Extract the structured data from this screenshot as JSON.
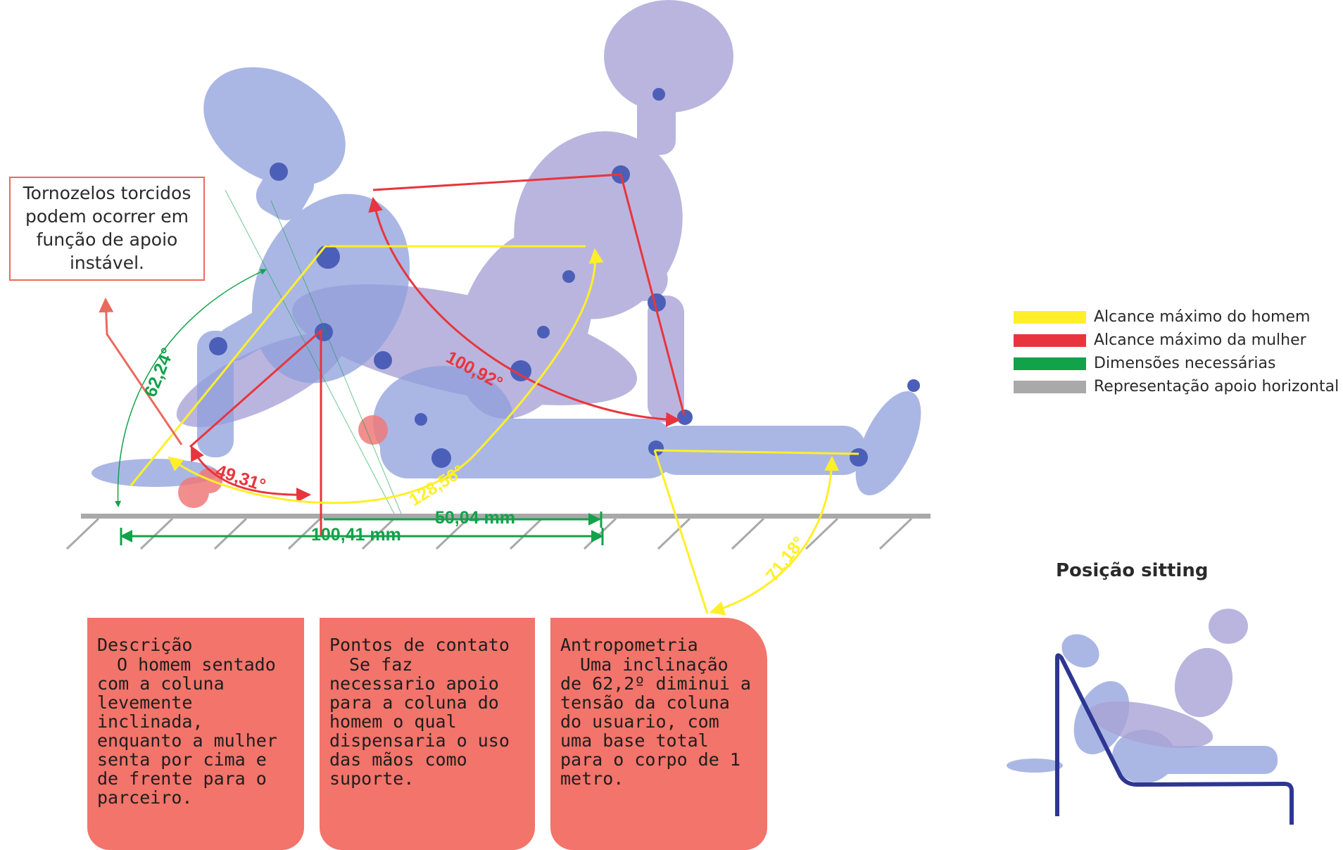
{
  "note": {
    "text": "Tornozelos torcidos podem ocorrer em função de apoio instável."
  },
  "legend": [
    {
      "label": "Alcance máximo do homem",
      "color": "#ffef2a"
    },
    {
      "label": "Alcance máximo da mulher",
      "color": "#e8353d"
    },
    {
      "label": "Dimensões necessárias",
      "color": "#12a24a"
    },
    {
      "label": "Representação apoio horizontal",
      "color": "#a9a9a9"
    }
  ],
  "measures": {
    "angle_back": "62,24°",
    "angle_woman_arm": "100,92°",
    "angle_woman_leg": "49,31°",
    "angle_man_arm": "128,56°",
    "angle_man_leg": "71,18°",
    "dist_total": "100,41 mm",
    "dist_partial": "50,04 mm"
  },
  "inset": {
    "title": "Posição sitting"
  },
  "cards": [
    {
      "title": "Descrição",
      "body": "O homem sentado com a coluna levemente inclinada, enquanto a mulher senta por cima e de frente para o parceiro."
    },
    {
      "title": "Pontos de contato",
      "body": "Se faz necessario apoio para a coluna do homem o qual dispensaria o uso das mãos como suporte."
    },
    {
      "title": "Antropometria",
      "body": "Uma inclinação de 62,2º diminui a tensão da coluna do usuario, com uma base total para o corpo de 1 metro."
    }
  ],
  "colors": {
    "figure_man": "#8e9fdc",
    "figure_woman": "#a9a3d6",
    "card": "#f2746a",
    "inset_support": "#2d3692"
  }
}
